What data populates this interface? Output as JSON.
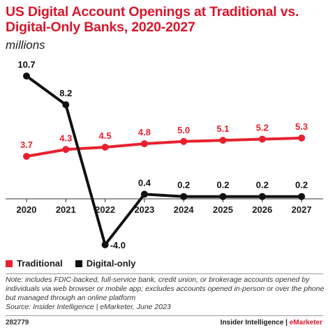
{
  "title": "US Digital Account Openings at Traditional vs. Digital-Only Banks, 2020-2027",
  "subtitle": "millions",
  "legend": {
    "traditional": "Traditional",
    "digital_only": "Digital-only"
  },
  "note": "Note: includes FDIC-backed, full-service bank, credit union, or brokerage accounts opened by individuals via web browser or mobile app; excludes accounts opened in-person or over the phone but managed through an online platform",
  "source": "Source: Insider Intelligence | eMarketer, June 2023",
  "footer": {
    "id": "282779",
    "brand_main": "Insider Intelligence | ",
    "brand_accent": "eMarketer"
  },
  "colors": {
    "traditional": "#e8212f",
    "digital_only": "#111111",
    "title": "#d9162b"
  },
  "chart_data": {
    "type": "line",
    "categories": [
      "2020",
      "2021",
      "2022",
      "2023",
      "2024",
      "2025",
      "2026",
      "2027"
    ],
    "series": [
      {
        "name": "Traditional",
        "values": [
          3.7,
          4.3,
          4.5,
          4.8,
          5.0,
          5.1,
          5.2,
          5.3
        ],
        "labels": [
          "3.7",
          "4.3",
          "4.5",
          "4.8",
          "5.0",
          "5.1",
          "5.2",
          "5.3"
        ]
      },
      {
        "name": "Digital-only",
        "values": [
          10.7,
          8.2,
          -4.0,
          0.4,
          0.2,
          0.2,
          0.2,
          0.2
        ],
        "labels": [
          "10.7",
          "8.2",
          "-4.0",
          "0.4",
          "0.2",
          "0.2",
          "0.2",
          "0.2"
        ]
      }
    ],
    "ylim": [
      -4.0,
      10.7
    ],
    "grid": false,
    "legend_position": "bottom-left"
  }
}
